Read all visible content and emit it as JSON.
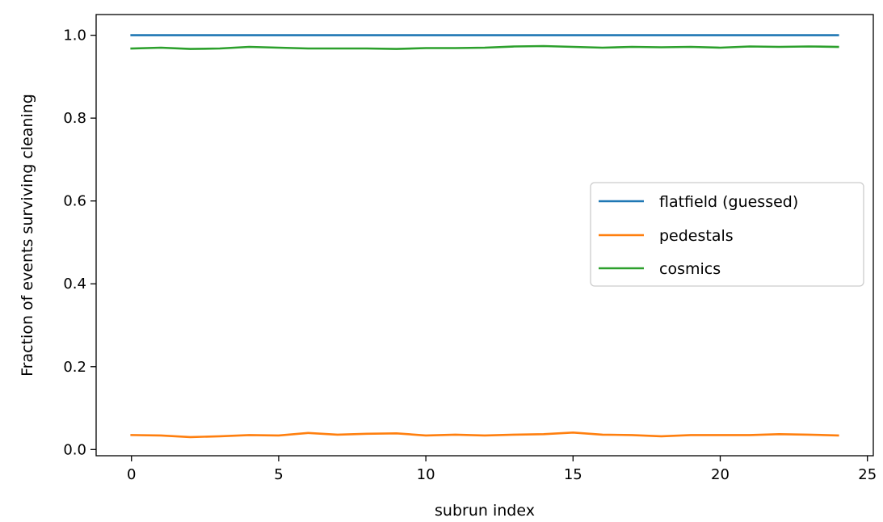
{
  "chart_data": {
    "type": "line",
    "title": "",
    "xlabel": "subrun index",
    "ylabel": "Fraction of events surviving cleaning",
    "xlim": [
      -1.2,
      25.2
    ],
    "ylim": [
      -0.015,
      1.05
    ],
    "xticks": [
      0,
      5,
      10,
      15,
      20,
      25
    ],
    "xtick_labels": [
      "0",
      "5",
      "10",
      "15",
      "20",
      "25"
    ],
    "yticks": [
      0.0,
      0.2,
      0.4,
      0.6,
      0.8,
      1.0
    ],
    "ytick_labels": [
      "0.0",
      "0.2",
      "0.4",
      "0.6",
      "0.8",
      "1.0"
    ],
    "grid": false,
    "legend_position": "center-right",
    "x": [
      0,
      1,
      2,
      3,
      4,
      5,
      6,
      7,
      8,
      9,
      10,
      11,
      12,
      13,
      14,
      15,
      16,
      17,
      18,
      19,
      20,
      21,
      22,
      23,
      24
    ],
    "series": [
      {
        "name": "flatfield (guessed)",
        "color": "#1f77b4",
        "values": [
          1.0,
          1.0,
          1.0,
          1.0,
          1.0,
          1.0,
          1.0,
          1.0,
          1.0,
          1.0,
          1.0,
          1.0,
          1.0,
          1.0,
          1.0,
          1.0,
          1.0,
          1.0,
          1.0,
          1.0,
          1.0,
          1.0,
          1.0,
          1.0,
          1.0
        ]
      },
      {
        "name": "pedestals",
        "color": "#ff7f0e",
        "values": [
          0.035,
          0.034,
          0.03,
          0.032,
          0.035,
          0.034,
          0.04,
          0.036,
          0.038,
          0.039,
          0.034,
          0.036,
          0.034,
          0.036,
          0.037,
          0.041,
          0.036,
          0.035,
          0.032,
          0.035,
          0.035,
          0.035,
          0.037,
          0.036,
          0.034
        ]
      },
      {
        "name": "cosmics",
        "color": "#2ca02c",
        "values": [
          0.968,
          0.97,
          0.967,
          0.968,
          0.972,
          0.97,
          0.968,
          0.968,
          0.968,
          0.967,
          0.969,
          0.969,
          0.97,
          0.973,
          0.974,
          0.972,
          0.97,
          0.972,
          0.971,
          0.972,
          0.97,
          0.973,
          0.972,
          0.973,
          0.972
        ]
      }
    ]
  }
}
